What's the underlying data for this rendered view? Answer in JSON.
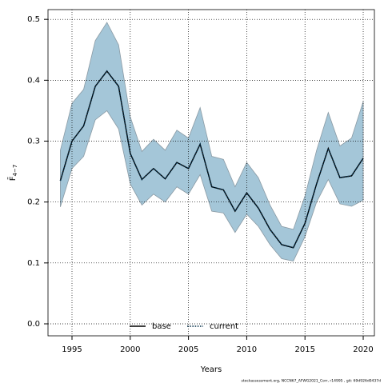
{
  "chart_data": {
    "type": "line",
    "xlabel": "Years",
    "ylabel": "F̄",
    "ylabel_sub": "4−7",
    "footnote": "stockassessment.org, NCCN67_AFWG2021_Corr, r14995 , git: 69d926d0437d",
    "x": [
      1994,
      1995,
      1996,
      1997,
      1998,
      1999,
      2000,
      2001,
      2002,
      2003,
      2004,
      2005,
      2006,
      2007,
      2008,
      2009,
      2010,
      2011,
      2012,
      2013,
      2014,
      2015,
      2016,
      2017,
      2018,
      2019,
      2020
    ],
    "series": [
      {
        "name": "base",
        "color": "#000000",
        "dash": "solid",
        "values": [
          0.235,
          0.3,
          0.325,
          0.39,
          0.415,
          0.39,
          0.28,
          0.237,
          0.255,
          0.238,
          0.265,
          0.255,
          0.295,
          0.225,
          0.22,
          0.185,
          0.215,
          0.19,
          0.155,
          0.13,
          0.125,
          0.165,
          0.23,
          0.288,
          0.24,
          0.243,
          0.272
        ]
      },
      {
        "name": "current",
        "color": "#06304a",
        "dash": "dotted",
        "values": [
          0.235,
          0.3,
          0.325,
          0.39,
          0.415,
          0.39,
          0.28,
          0.237,
          0.255,
          0.238,
          0.265,
          0.255,
          0.295,
          0.225,
          0.22,
          0.185,
          0.215,
          0.19,
          0.155,
          0.13,
          0.125,
          0.165,
          0.23,
          0.288,
          0.24,
          0.243,
          0.272
        ],
        "upper": [
          0.285,
          0.362,
          0.385,
          0.465,
          0.495,
          0.458,
          0.34,
          0.283,
          0.303,
          0.285,
          0.318,
          0.305,
          0.355,
          0.275,
          0.27,
          0.225,
          0.265,
          0.24,
          0.195,
          0.16,
          0.155,
          0.21,
          0.285,
          0.347,
          0.292,
          0.305,
          0.365
        ],
        "lower": [
          0.192,
          0.255,
          0.275,
          0.335,
          0.35,
          0.32,
          0.23,
          0.195,
          0.213,
          0.2,
          0.225,
          0.213,
          0.245,
          0.185,
          0.182,
          0.15,
          0.18,
          0.16,
          0.13,
          0.107,
          0.103,
          0.143,
          0.2,
          0.237,
          0.197,
          0.193,
          0.203
        ],
        "band_color": "#a4c6d8"
      }
    ],
    "xlim": [
      1992.94,
      2020.96
    ],
    "ylim": [
      -0.0197,
      0.516
    ],
    "xticks": [
      1995,
      2000,
      2005,
      2010,
      2015,
      2020
    ],
    "yticks": [
      {
        "value": 0,
        "label": "0.0"
      },
      0.1,
      0.2,
      0.3,
      0.4,
      0.5
    ],
    "grid": true,
    "legend": "bottom"
  }
}
